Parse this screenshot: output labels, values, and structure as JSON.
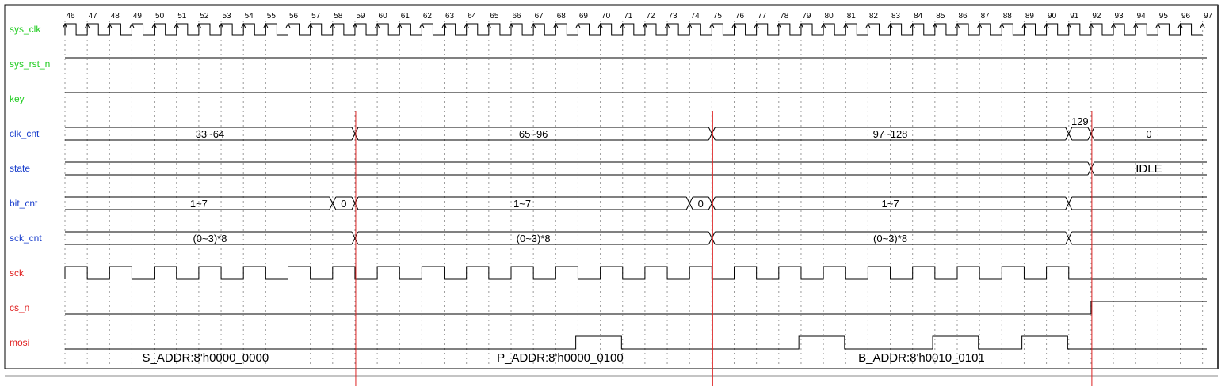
{
  "cycles": [
    46,
    47,
    48,
    49,
    50,
    51,
    52,
    53,
    54,
    55,
    56,
    57,
    58,
    59,
    60,
    61,
    62,
    63,
    64,
    65,
    66,
    67,
    68,
    69,
    70,
    71,
    72,
    73,
    74,
    75,
    76,
    77,
    78,
    79,
    80,
    81,
    82,
    83,
    84,
    85,
    86,
    87,
    88,
    89,
    90,
    91,
    92,
    93,
    94,
    95,
    96,
    97
  ],
  "signals": [
    {
      "key": "sys_clk",
      "label": "sys_clk",
      "color": "#22cc22"
    },
    {
      "key": "sys_rst_n",
      "label": "sys_rst_n",
      "color": "#22cc22"
    },
    {
      "key": "key",
      "label": "key",
      "color": "#22cc22"
    },
    {
      "key": "clk_cnt",
      "label": "clk_cnt",
      "color": "#1a3fcc"
    },
    {
      "key": "state",
      "label": "state",
      "color": "#1a3fcc"
    },
    {
      "key": "bit_cnt",
      "label": "bit_cnt",
      "color": "#1a3fcc"
    },
    {
      "key": "sck_cnt",
      "label": "sck_cnt",
      "color": "#1a3fcc"
    },
    {
      "key": "sck",
      "label": "sck",
      "color": "#e02020"
    },
    {
      "key": "cs_n",
      "label": "cs_n",
      "color": "#e02020"
    },
    {
      "key": "mosi",
      "label": "mosi",
      "color": "#e02020"
    }
  ],
  "buses": {
    "clk_cnt": [
      {
        "from": 45.9,
        "to": 59,
        "label": "33~64"
      },
      {
        "from": 59,
        "to": 75,
        "label": "65~96"
      },
      {
        "from": 75,
        "to": 91,
        "label": "97~128"
      },
      {
        "from": 91,
        "to": 92,
        "label": "129",
        "label_above": true
      },
      {
        "from": 92,
        "to": 97.3,
        "label": "0"
      }
    ],
    "state": [
      {
        "from": 45.9,
        "to": 92,
        "label": ""
      },
      {
        "from": 92,
        "to": 97.3,
        "label": "IDLE"
      }
    ],
    "bit_cnt": [
      {
        "from": 45.9,
        "to": 58,
        "label": "1~7"
      },
      {
        "from": 58,
        "to": 59,
        "label": "0"
      },
      {
        "from": 59,
        "to": 74,
        "label": "1~7"
      },
      {
        "from": 74,
        "to": 75,
        "label": "0"
      },
      {
        "from": 75,
        "to": 91,
        "label": "1~7"
      },
      {
        "from": 91,
        "to": 97.3,
        "label": ""
      }
    ],
    "sck_cnt": [
      {
        "from": 45.9,
        "to": 59,
        "label": "(0~3)*8"
      },
      {
        "from": 59,
        "to": 75,
        "label": "(0~3)*8"
      },
      {
        "from": 75,
        "to": 91,
        "label": "(0~3)*8"
      },
      {
        "from": 91,
        "to": 97.3,
        "label": ""
      }
    ]
  },
  "digital": {
    "sys_rst_n": [
      [
        45.9,
        1
      ]
    ],
    "key": [
      [
        45.9,
        1
      ]
    ],
    "cs_n": [
      [
        45.9,
        0
      ],
      [
        92,
        1
      ]
    ],
    "mosi": [
      [
        45.9,
        0
      ],
      [
        68.9,
        1
      ],
      [
        70.95,
        0
      ],
      [
        78.9,
        1
      ],
      [
        80.95,
        0
      ],
      [
        84.9,
        1
      ],
      [
        86.95,
        0
      ],
      [
        88.9,
        1
      ],
      [
        90.95,
        0
      ]
    ]
  },
  "sck_active_until": 91,
  "markers": [
    59,
    75,
    92
  ],
  "mosi_annotations": [
    {
      "at": 52.3,
      "label": "S_ADDR:8'h0000_0000"
    },
    {
      "at": 68.2,
      "label": "P_ADDR:8'h0000_0100"
    },
    {
      "at": 84.4,
      "label": "B_ADDR:8'h0010_0101"
    }
  ]
}
